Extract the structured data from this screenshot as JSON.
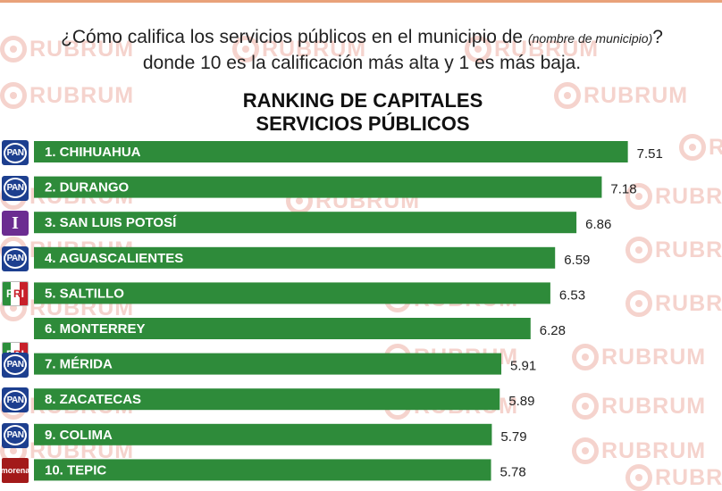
{
  "question": {
    "part1": "¿Cómo califica los servicios públicos en el municipio de ",
    "italic": "(nombre de municipio)",
    "part2": "? donde 10 es la calificación más alta y 1 es más baja."
  },
  "watermark_text": "RUBRUM",
  "colors": {
    "bar": "#2e8b3a",
    "bar_text": "#ffffff",
    "value_text": "#222222"
  },
  "chart_data": {
    "type": "bar",
    "orientation": "horizontal",
    "title": "RANKING DE CAPITALES SERVICIOS PÚBLICOS",
    "title_lines": [
      "RANKING DE CAPITALES",
      "SERVICIOS PÚBLICOS"
    ],
    "categories": [
      "1. CHIHUAHUA",
      "2. DURANGO",
      "3. SAN LUIS POTOSÍ",
      "4. AGUASCALIENTES",
      "5. SALTILLO",
      "6. MONTERREY",
      "7. MÉRIDA",
      "8. ZACATECAS",
      "9. COLIMA",
      "10. TEPIC"
    ],
    "values": [
      7.51,
      7.18,
      6.86,
      6.59,
      6.53,
      6.28,
      5.91,
      5.89,
      5.79,
      5.78
    ],
    "value_labels": [
      "7.51",
      "7.18",
      "6.86",
      "6.59",
      "6.53",
      "6.28",
      "5.91",
      "5.89",
      "5.79",
      "5.78"
    ],
    "party_icons": [
      "pan-logo-icon",
      "pan-logo-icon",
      "independent-logo-icon",
      "pan-logo-icon",
      "pri-logo-icon",
      "pri-logo-icon",
      "pan-logo-icon",
      "pan-logo-icon",
      "pan-logo-icon",
      "morena-logo-icon"
    ],
    "party_marks": [
      "PAN",
      "PAN",
      "I",
      "PAN",
      "PRI",
      "PRI",
      "PAN",
      "PAN",
      "PAN",
      "morena"
    ],
    "xlim": [
      0,
      8
    ],
    "grid": false,
    "legend": "none"
  }
}
